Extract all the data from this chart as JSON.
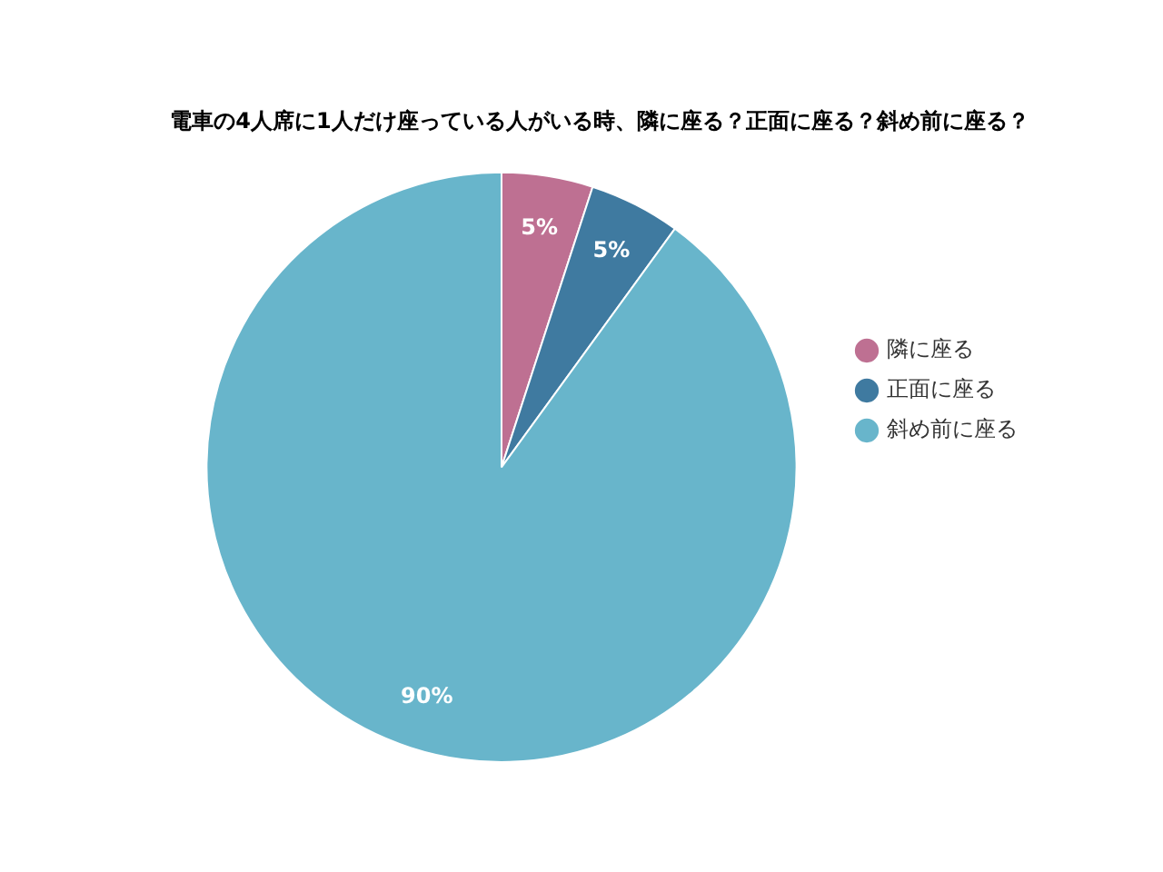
{
  "chart_data": {
    "type": "pie",
    "title": "電車の4人席に1人だけ座っている人がいる時、隣に座る？正面に座る？斜め前に座る？",
    "categories": [
      "隣に座る",
      "正面に座る",
      "斜め前に座る"
    ],
    "values": [
      5,
      5,
      90
    ],
    "value_labels": [
      "5%",
      "5%",
      "90%"
    ],
    "colors": [
      "#be7092",
      "#3f7aa0",
      "#68b5cb"
    ],
    "legend": "right"
  }
}
